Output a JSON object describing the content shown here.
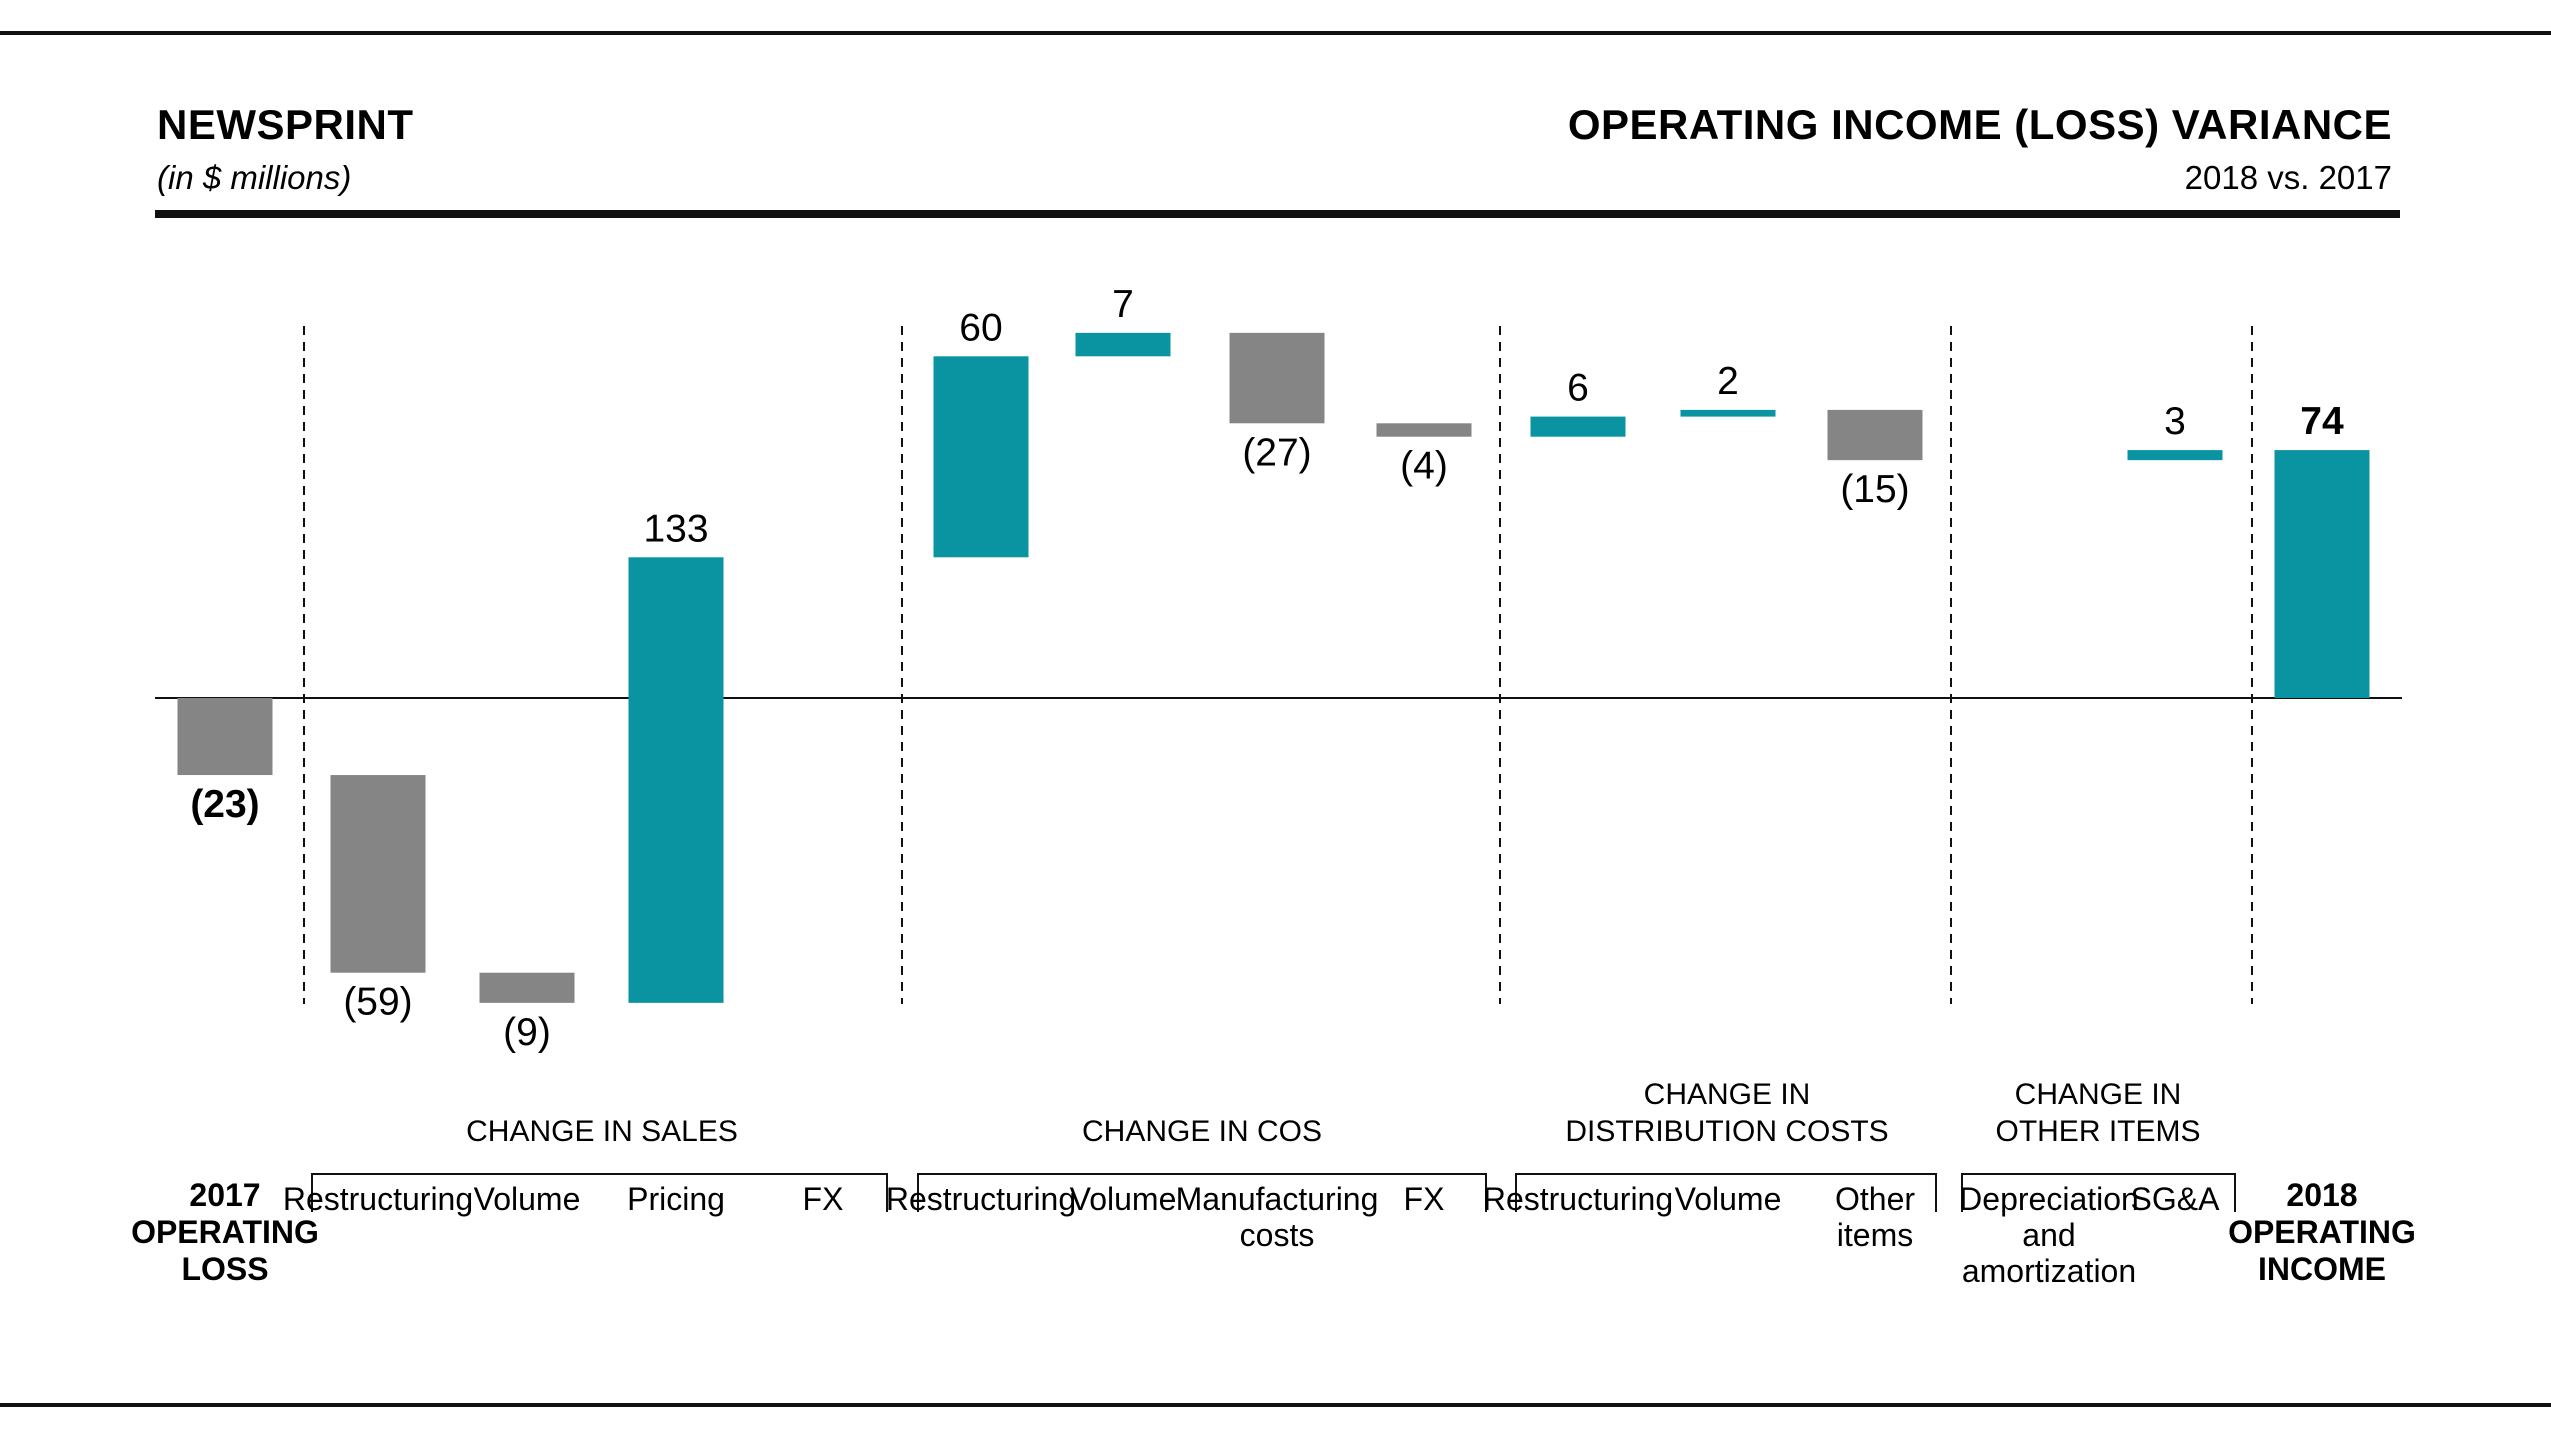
{
  "header": {
    "title_left": "NEWSPRINT",
    "subtitle_left": "(in $ millions)",
    "title_right": "OPERATING INCOME (LOSS) VARIANCE",
    "subtitle_right": "2018 vs. 2017"
  },
  "colors": {
    "positive": "#0a93a0",
    "negative": "#858585",
    "text": "#111111",
    "rule": "#111111"
  },
  "chart_data": {
    "type": "bar",
    "subtype": "waterfall",
    "title": "OPERATING INCOME (LOSS) VARIANCE",
    "subtitle": "2018 vs. 2017",
    "unit": "(in $ millions)",
    "start": {
      "label": [
        "2017",
        "OPERATING",
        "LOSS"
      ],
      "value": -23,
      "value_label": "(23)"
    },
    "end": {
      "label": [
        "2018",
        "OPERATING",
        "INCOME"
      ],
      "value": 74,
      "value_label": "74"
    },
    "groups": [
      {
        "name": [
          "CHANGE IN SALES"
        ],
        "items": [
          {
            "label": [
              "Restructuring"
            ],
            "value": -59,
            "value_label": "(59)"
          },
          {
            "label": [
              "Volume"
            ],
            "value": -9,
            "value_label": "(9)"
          },
          {
            "label": [
              "Pricing"
            ],
            "value": 133,
            "value_label": "133"
          },
          {
            "label": [
              "FX"
            ],
            "value": null,
            "value_label": ""
          }
        ]
      },
      {
        "name": [
          "CHANGE IN COS"
        ],
        "items": [
          {
            "label": [
              "Restructuring"
            ],
            "value": 60,
            "value_label": "60"
          },
          {
            "label": [
              "Volume"
            ],
            "value": 7,
            "value_label": "7"
          },
          {
            "label": [
              "Manufacturing",
              "costs"
            ],
            "value": -27,
            "value_label": "(27)"
          },
          {
            "label": [
              "FX"
            ],
            "value": -4,
            "value_label": "(4)"
          }
        ]
      },
      {
        "name": [
          "CHANGE IN",
          "DISTRIBUTION COSTS"
        ],
        "items": [
          {
            "label": [
              "Restructuring"
            ],
            "value": 6,
            "value_label": "6"
          },
          {
            "label": [
              "Volume"
            ],
            "value": 2,
            "value_label": "2"
          },
          {
            "label": [
              "Other",
              "items"
            ],
            "value": -15,
            "value_label": "(15)"
          }
        ]
      },
      {
        "name": [
          "CHANGE IN",
          "OTHER ITEMS"
        ],
        "items": [
          {
            "label": [
              "Depreciation",
              "and",
              "amortization"
            ],
            "value": null,
            "value_label": ""
          },
          {
            "label": [
              "SG&A"
            ],
            "value": 3,
            "value_label": "3"
          }
        ]
      }
    ]
  }
}
